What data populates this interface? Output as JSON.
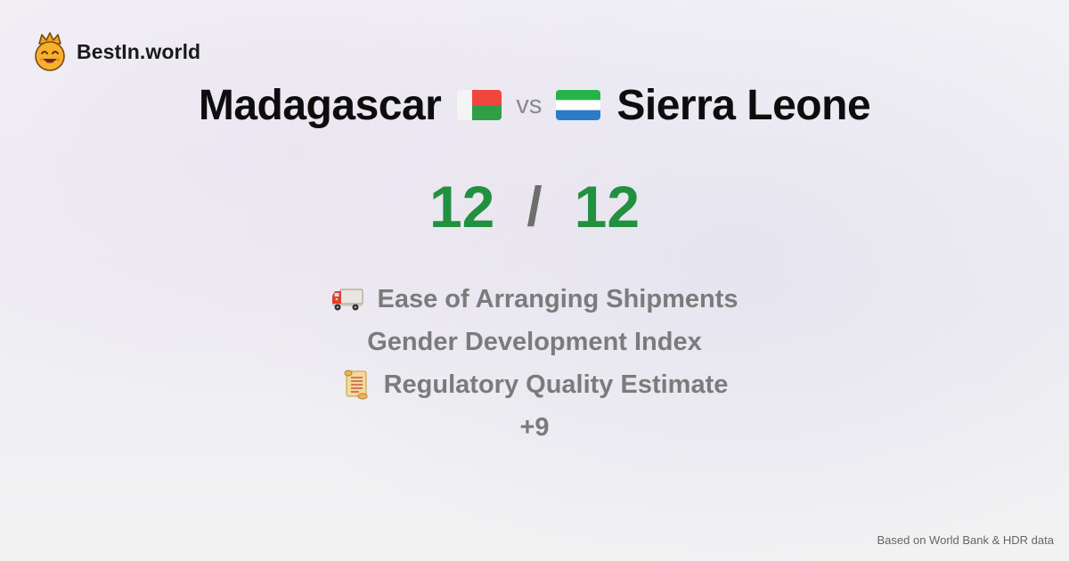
{
  "brand": {
    "name": "BestIn.world",
    "icon": "crown-smiley-icon"
  },
  "comparison": {
    "left_country": "Madagascar",
    "left_flag_icon": "madagascar-flag-icon",
    "vs_label": "vs",
    "right_country": "Sierra Leone",
    "right_flag_icon": "sierra-leone-flag-icon"
  },
  "score": {
    "left": "12",
    "separator": "/",
    "right": "12",
    "color": "#21913f"
  },
  "metrics": [
    {
      "icon": "delivery-truck-icon",
      "label": "Ease of Arranging Shipments"
    },
    {
      "icon": "",
      "label": "Gender Development Index"
    },
    {
      "icon": "scroll-icon",
      "label": "Regulatory Quality Estimate"
    }
  ],
  "more_label": "+9",
  "footer": {
    "source_note": "Based on World Bank & HDR data"
  },
  "colors": {
    "madagascar_white": "#f4f4f4",
    "madagascar_red": "#f0463e",
    "madagascar_green": "#2f9e45",
    "sierra_leone_green": "#26b44a",
    "sierra_leone_white": "#ffffff",
    "sierra_leone_blue": "#2a7bc8"
  }
}
